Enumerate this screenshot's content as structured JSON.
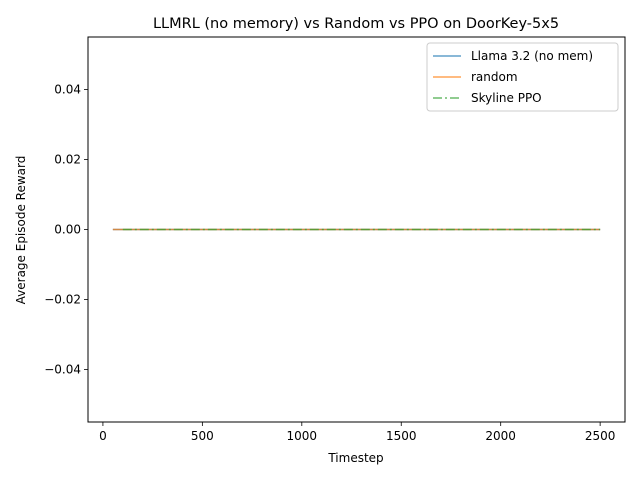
{
  "chart_data": {
    "type": "line",
    "title": "LLMRL (no memory) vs Random vs PPO on DoorKey-5x5",
    "xlabel": "Timestep",
    "ylabel": "Average Episode Reward",
    "xlim": [
      -75,
      2625
    ],
    "ylim": [
      -0.055,
      0.055
    ],
    "x_ticks": [
      0,
      500,
      1000,
      1500,
      2000,
      2500
    ],
    "y_ticks": [
      -0.04,
      -0.02,
      0.0,
      0.02,
      0.04
    ],
    "x_tick_labels": [
      "0",
      "500",
      "1000",
      "1500",
      "2000",
      "2500"
    ],
    "y_tick_labels": [
      "−0.04",
      "−0.02",
      "0.00",
      "0.02",
      "0.04"
    ],
    "grid": false,
    "legend_position": "upper-right",
    "series": [
      {
        "name": "Llama 3.2 (no mem)",
        "color": "#1f77b4",
        "style": "solid",
        "opacity": 0.7,
        "x": [
          50,
          2500
        ],
        "y": [
          0.0,
          0.0
        ]
      },
      {
        "name": "random",
        "color": "#ff7f0e",
        "style": "solid",
        "opacity": 0.7,
        "x": [
          50,
          2500
        ],
        "y": [
          0.0,
          0.0
        ]
      },
      {
        "name": "Skyline PPO",
        "color": "#2ca02c",
        "style": "dashdot",
        "opacity": 0.7,
        "x": [
          100,
          2500
        ],
        "y": [
          0.0,
          0.0
        ]
      }
    ]
  }
}
